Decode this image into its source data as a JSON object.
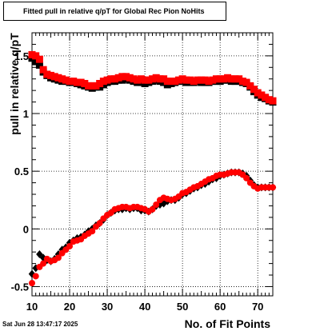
{
  "chart_data": {
    "type": "scatter",
    "title": "Fitted pull in relative q/pT for Global Rec Pion NoHits",
    "xlabel": "No. of Fit Points",
    "ylabel": "pull in relative q/pT",
    "timestamp": "Sat Jun 28 13:47:17 2025",
    "xlim": [
      10,
      74
    ],
    "ylim": [
      -0.58,
      1.7
    ],
    "grid": true,
    "x_ticks": [
      10,
      20,
      30,
      40,
      50,
      60,
      70
    ],
    "y_ticks": [
      -0.5,
      0,
      0.5,
      1,
      1.5
    ],
    "y_tick_labels": [
      "-0.5",
      "0",
      "0.5",
      "1",
      "1.5"
    ],
    "series": [
      {
        "marker": "diamond",
        "color": "#000000",
        "x": [
          10,
          11,
          12,
          13,
          14,
          15,
          16,
          17,
          18,
          19,
          20,
          21,
          22,
          23,
          24,
          25,
          26,
          27,
          28,
          29,
          30,
          31,
          32,
          33,
          34,
          35,
          36,
          37,
          38,
          39,
          40,
          41,
          42,
          43,
          44,
          45,
          46,
          47,
          48,
          49,
          50,
          51,
          52,
          53,
          54,
          55,
          56,
          57,
          58,
          59,
          60,
          61,
          62,
          63,
          64,
          65,
          66,
          67,
          68,
          69,
          70,
          71,
          72,
          73,
          74
        ],
        "values": [
          -0.39,
          -0.34,
          -0.22,
          -0.25,
          -0.27,
          -0.28,
          -0.26,
          -0.22,
          -0.18,
          -0.16,
          -0.12,
          -0.1,
          -0.08,
          -0.07,
          -0.05,
          -0.02,
          0.0,
          0.03,
          0.05,
          0.08,
          0.12,
          0.14,
          0.16,
          0.17,
          0.17,
          0.18,
          0.17,
          0.18,
          0.18,
          0.16,
          0.16,
          0.15,
          0.17,
          0.2,
          0.21,
          0.22,
          0.24,
          0.25,
          0.25,
          0.27,
          0.3,
          0.31,
          0.33,
          0.35,
          0.36,
          0.38,
          0.39,
          0.41,
          0.43,
          0.44,
          0.46,
          0.47,
          0.48,
          0.49,
          0.49,
          0.49,
          0.48,
          0.46,
          0.42,
          0.38,
          0.36,
          0.36,
          0.36,
          0.36,
          0.36
        ]
      },
      {
        "marker": "square",
        "color": "#000000",
        "x": [
          10,
          11,
          12,
          13,
          14,
          15,
          16,
          17,
          18,
          19,
          20,
          21,
          22,
          23,
          24,
          25,
          26,
          27,
          28,
          29,
          30,
          31,
          32,
          33,
          34,
          35,
          36,
          37,
          38,
          39,
          40,
          41,
          42,
          43,
          44,
          45,
          46,
          47,
          48,
          49,
          50,
          51,
          52,
          53,
          54,
          55,
          56,
          57,
          58,
          59,
          60,
          61,
          62,
          63,
          64,
          65,
          66,
          67,
          68,
          69,
          70,
          71,
          72,
          73,
          74
        ],
        "values": [
          1.48,
          1.45,
          1.42,
          1.36,
          1.33,
          1.31,
          1.3,
          1.29,
          1.28,
          1.28,
          1.27,
          1.27,
          1.26,
          1.25,
          1.24,
          1.23,
          1.22,
          1.23,
          1.23,
          1.25,
          1.27,
          1.28,
          1.28,
          1.29,
          1.29,
          1.3,
          1.29,
          1.28,
          1.27,
          1.27,
          1.26,
          1.27,
          1.28,
          1.29,
          1.28,
          1.27,
          1.25,
          1.26,
          1.27,
          1.28,
          1.28,
          1.27,
          1.27,
          1.27,
          1.28,
          1.27,
          1.27,
          1.27,
          1.28,
          1.28,
          1.28,
          1.29,
          1.29,
          1.28,
          1.28,
          1.28,
          1.27,
          1.26,
          1.23,
          1.19,
          1.16,
          1.14,
          1.13,
          1.11,
          1.1
        ]
      },
      {
        "marker": "circle",
        "color": "#ff0000",
        "x": [
          10,
          11,
          12,
          13,
          14,
          15,
          16,
          17,
          18,
          19,
          20,
          21,
          22,
          23,
          24,
          25,
          26,
          27,
          28,
          29,
          30,
          31,
          32,
          33,
          34,
          35,
          36,
          37,
          38,
          39,
          40,
          41,
          42,
          43,
          44,
          45,
          46,
          47,
          48,
          49,
          50,
          51,
          52,
          53,
          54,
          55,
          56,
          57,
          58,
          59,
          60,
          61,
          62,
          63,
          64,
          65,
          66,
          67,
          68,
          69,
          70,
          71,
          72,
          73,
          74
        ],
        "values": [
          -0.47,
          -0.41,
          -0.33,
          -0.3,
          -0.26,
          -0.28,
          -0.27,
          -0.25,
          -0.21,
          -0.18,
          -0.15,
          -0.11,
          -0.1,
          -0.09,
          -0.06,
          -0.04,
          -0.02,
          0.02,
          0.05,
          0.09,
          0.12,
          0.14,
          0.17,
          0.18,
          0.19,
          0.19,
          0.18,
          0.19,
          0.19,
          0.18,
          0.17,
          0.15,
          0.17,
          0.21,
          0.25,
          0.27,
          0.26,
          0.25,
          0.26,
          0.28,
          0.31,
          0.32,
          0.34,
          0.36,
          0.37,
          0.39,
          0.41,
          0.43,
          0.44,
          0.46,
          0.47,
          0.47,
          0.48,
          0.49,
          0.49,
          0.49,
          0.47,
          0.44,
          0.4,
          0.37,
          0.35,
          0.36,
          0.36,
          0.36,
          0.36
        ]
      },
      {
        "marker": "square",
        "color": "#ff0000",
        "x": [
          10,
          11,
          12,
          13,
          14,
          15,
          16,
          17,
          18,
          19,
          20,
          21,
          22,
          23,
          24,
          25,
          26,
          27,
          28,
          29,
          30,
          31,
          32,
          33,
          34,
          35,
          36,
          37,
          38,
          39,
          40,
          41,
          42,
          43,
          44,
          45,
          46,
          47,
          48,
          49,
          50,
          51,
          52,
          53,
          54,
          55,
          56,
          57,
          58,
          59,
          60,
          61,
          62,
          63,
          64,
          65,
          66,
          67,
          68,
          69,
          70,
          71,
          72,
          73,
          74
        ],
        "values": [
          1.51,
          1.5,
          1.47,
          1.38,
          1.34,
          1.33,
          1.32,
          1.31,
          1.3,
          1.29,
          1.28,
          1.28,
          1.27,
          1.27,
          1.26,
          1.24,
          1.24,
          1.24,
          1.26,
          1.28,
          1.29,
          1.3,
          1.3,
          1.31,
          1.32,
          1.32,
          1.31,
          1.3,
          1.29,
          1.3,
          1.29,
          1.29,
          1.3,
          1.31,
          1.3,
          1.3,
          1.28,
          1.28,
          1.28,
          1.29,
          1.3,
          1.29,
          1.29,
          1.28,
          1.29,
          1.29,
          1.29,
          1.28,
          1.29,
          1.3,
          1.3,
          1.3,
          1.31,
          1.3,
          1.3,
          1.3,
          1.28,
          1.27,
          1.24,
          1.21,
          1.18,
          1.16,
          1.14,
          1.12,
          1.11
        ]
      }
    ]
  }
}
